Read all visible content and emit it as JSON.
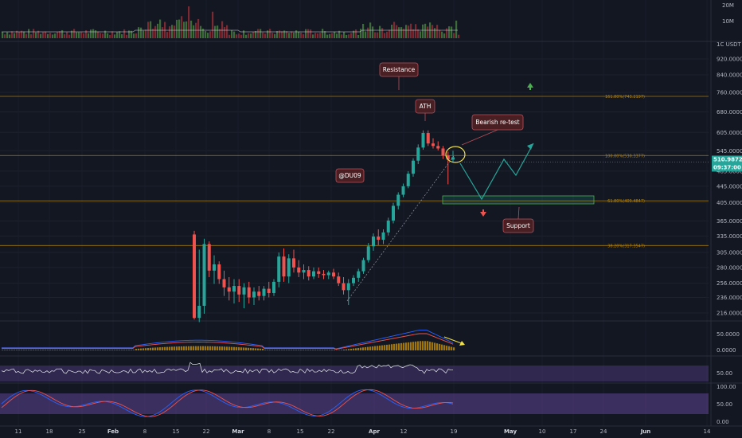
{
  "chart_data": {
    "type": "candlestick",
    "symbol_label": "1C USDT 30",
    "current_price": "510.9872",
    "countdown": "09:37:00",
    "price_axis_labels": [
      "920.0000",
      "840.0000",
      "760.0000",
      "680.0000",
      "605.0000",
      "545.0000",
      "485.0000",
      "445.0000",
      "405.0000",
      "365.0000",
      "335.0000",
      "305.0000",
      "280.0000",
      "256.0000",
      "236.0000",
      "216.0000"
    ],
    "volume_axis_labels": [
      "20M",
      "10M"
    ],
    "x_axis_labels": [
      "11",
      "18",
      "25",
      "Feb",
      "8",
      "15",
      "22",
      "Mar",
      "8",
      "15",
      "22",
      "Apr",
      "12",
      "19",
      "May",
      "10",
      "17",
      "24",
      "Jun",
      "14"
    ],
    "x_axis_bold": [
      "Feb",
      "Mar",
      "Apr",
      "May",
      "Jun"
    ],
    "fib_levels": [
      {
        "label": "161.80%(743.2197)",
        "price": 743.2197
      },
      {
        "label": "100.00%(530.3377)",
        "price": 530.3377
      },
      {
        "label": "61.80%(409.4847)",
        "price": 409.4847
      },
      {
        "label": "38.20%(317.3547)",
        "price": 317.3547
      }
    ],
    "annotations": [
      "Resistance",
      "ATH",
      "Bearish re-test",
      "@DU09",
      "Support"
    ],
    "macd_axis_labels": [
      "50.0000",
      "0.0000"
    ],
    "rsi_axis_labels": [
      "50.00"
    ],
    "stoch_axis_labels": [
      "100.00",
      "50.00",
      "0.00"
    ],
    "candles": [
      [
        338,
        345,
        208,
        210
      ],
      [
        210,
        310,
        205,
        225
      ],
      [
        225,
        330,
        215,
        320
      ],
      [
        320,
        325,
        265,
        275
      ],
      [
        275,
        300,
        255,
        285
      ],
      [
        285,
        290,
        255,
        262
      ],
      [
        262,
        275,
        238,
        250
      ],
      [
        250,
        265,
        232,
        244
      ],
      [
        244,
        262,
        228,
        252
      ],
      [
        252,
        262,
        230,
        240
      ],
      [
        240,
        256,
        222,
        250
      ],
      [
        250,
        258,
        228,
        236
      ],
      [
        236,
        250,
        226,
        244
      ],
      [
        244,
        252,
        232,
        238
      ],
      [
        238,
        252,
        232,
        248
      ],
      [
        248,
        258,
        236,
        242
      ],
      [
        242,
        262,
        238,
        258
      ],
      [
        258,
        305,
        250,
        298
      ],
      [
        298,
        312,
        258,
        266
      ],
      [
        266,
        302,
        256,
        295
      ],
      [
        295,
        310,
        272,
        280
      ],
      [
        280,
        292,
        265,
        272
      ],
      [
        272,
        285,
        262,
        276
      ],
      [
        276,
        282,
        260,
        266
      ],
      [
        266,
        280,
        262,
        274
      ],
      [
        274,
        280,
        264,
        270
      ],
      [
        270,
        276,
        262,
        268
      ],
      [
        268,
        275,
        262,
        272
      ],
      [
        272,
        278,
        262,
        266
      ],
      [
        266,
        272,
        252,
        256
      ],
      [
        256,
        265,
        240,
        246
      ],
      [
        246,
        262,
        226,
        256
      ],
      [
        256,
        268,
        252,
        264
      ],
      [
        264,
        278,
        258,
        274
      ],
      [
        274,
        296,
        270,
        292
      ],
      [
        292,
        322,
        288,
        316
      ],
      [
        316,
        340,
        308,
        334
      ],
      [
        334,
        348,
        318,
        328
      ],
      [
        328,
        348,
        320,
        342
      ],
      [
        342,
        372,
        336,
        366
      ],
      [
        366,
        405,
        360,
        398
      ],
      [
        398,
        430,
        390,
        424
      ],
      [
        424,
        452,
        418,
        445
      ],
      [
        445,
        485,
        440,
        478
      ],
      [
        478,
        522,
        470,
        515
      ],
      [
        515,
        565,
        505,
        555
      ],
      [
        555,
        612,
        548,
        603
      ],
      [
        603,
        612,
        560,
        568
      ],
      [
        568,
        585,
        552,
        560
      ],
      [
        560,
        575,
        546,
        552
      ],
      [
        552,
        560,
        520,
        530
      ],
      [
        530,
        542,
        450,
        518
      ],
      [
        518,
        545,
        512,
        525
      ]
    ]
  }
}
